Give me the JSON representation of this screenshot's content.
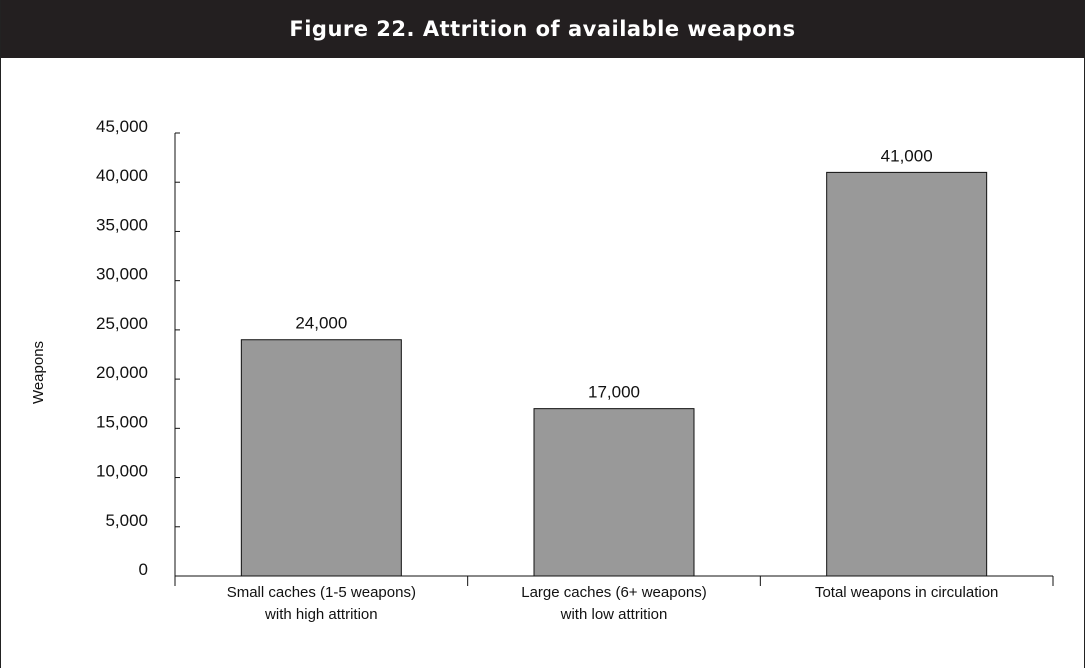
{
  "header": {
    "title": "Figure 22. Attrition of available weapons"
  },
  "colors": {
    "title_bg": "#231f20",
    "bar_fill": "#999999",
    "bar_stroke": "#111111"
  },
  "chart_data": {
    "type": "bar",
    "title": "Figure 22. Attrition of available weapons",
    "ylabel": "Weapons",
    "xlabel": "",
    "categories": [
      [
        "Small caches (1-5 weapons)",
        "with high attrition"
      ],
      [
        "Large caches (6+ weapons)",
        "with low attrition"
      ],
      [
        "Total weapons in circulation"
      ]
    ],
    "values": [
      24000,
      17000,
      41000
    ],
    "data_labels": [
      "24,000",
      "17,000",
      "41,000"
    ],
    "ylim": [
      0,
      45000
    ],
    "yticks": [
      0,
      5000,
      10000,
      15000,
      20000,
      25000,
      30000,
      35000,
      40000,
      45000
    ],
    "ytick_labels": [
      "0",
      "5,000",
      "10,000",
      "15,000",
      "20,000",
      "25,000",
      "30,000",
      "35,000",
      "40,000",
      "45,000"
    ],
    "grid": false,
    "legend": "none"
  }
}
